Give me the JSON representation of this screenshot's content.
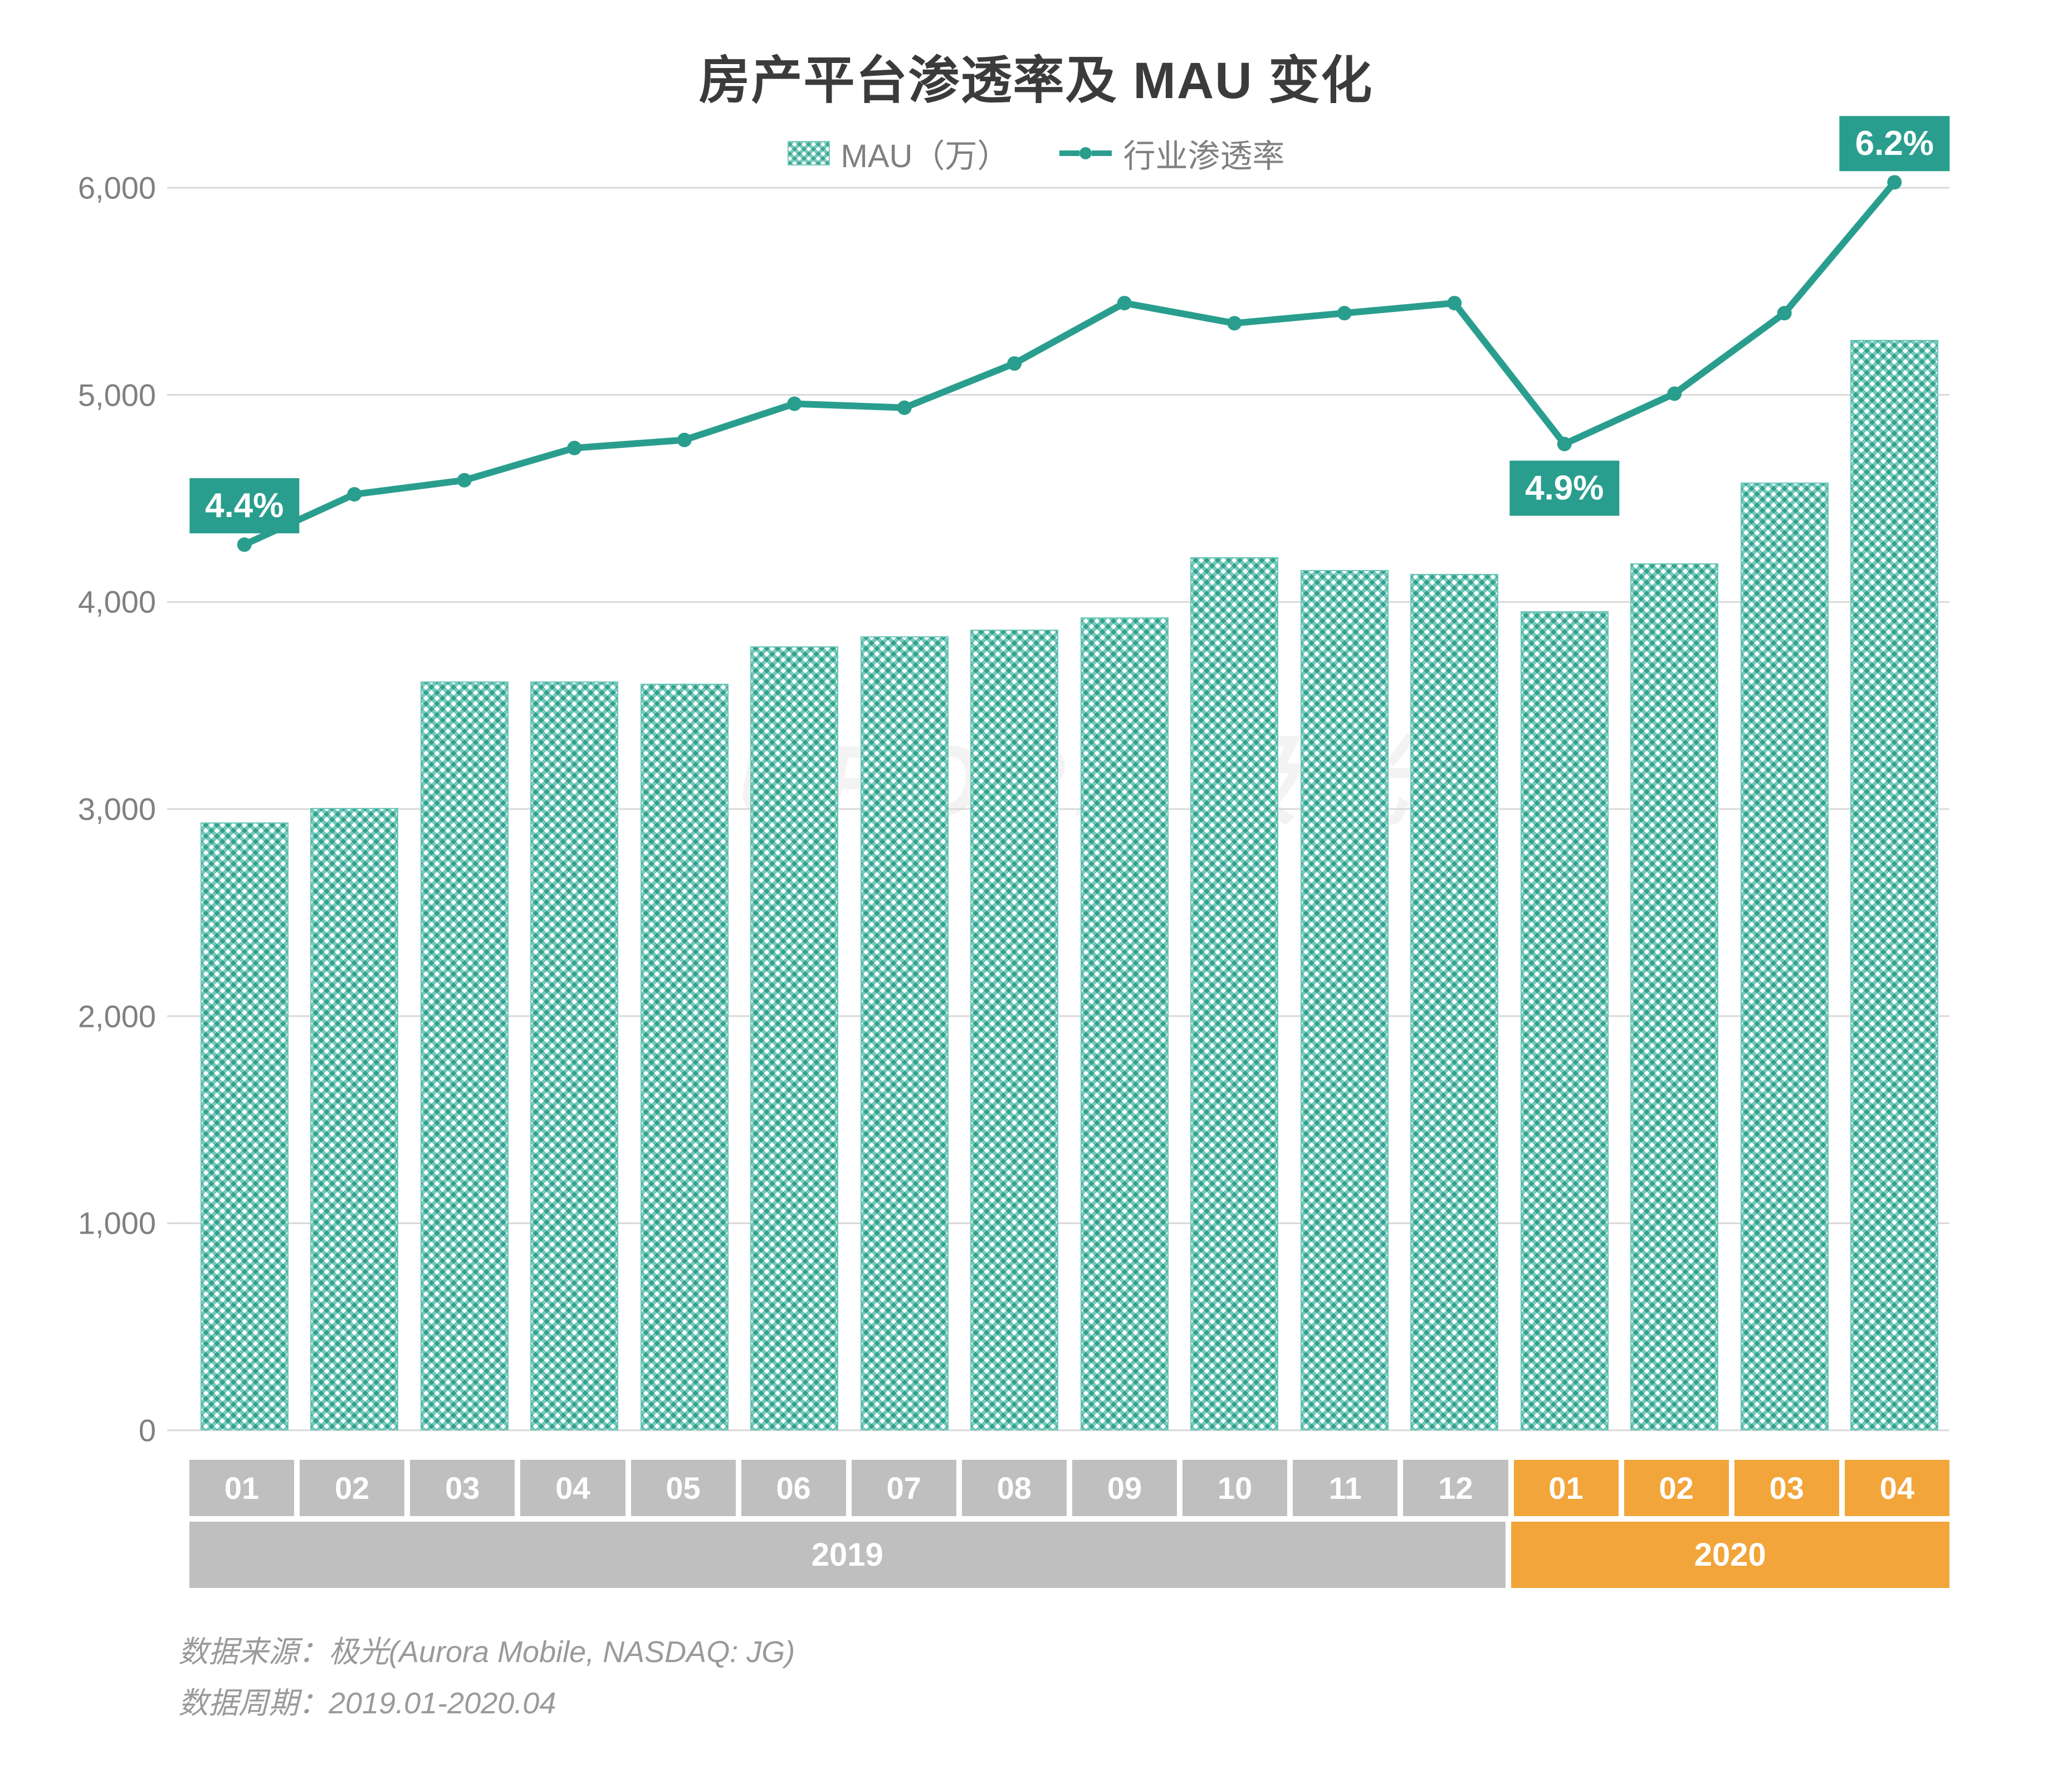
{
  "chart": {
    "type": "bar+line",
    "title": "房产平台渗透率及 MAU 变化",
    "title_fontsize": 92,
    "title_color": "#3b3b3b",
    "background_color": "#ffffff",
    "grid_color": "#d9d9d9",
    "watermark_text": "AURORA 极光",
    "legend": {
      "bar_label": "MAU（万）",
      "line_label": "行业渗透率",
      "font_color": "#808080",
      "font_size": 58
    },
    "y_axis": {
      "min": 0,
      "max": 6000,
      "tick_step": 1000,
      "ticks": [
        "0",
        "1,000",
        "2,000",
        "3,000",
        "4,000",
        "5,000",
        "6,000"
      ],
      "label_color": "#808080",
      "label_fontsize": 56
    },
    "x_axis": {
      "months": [
        "01",
        "02",
        "03",
        "04",
        "05",
        "06",
        "07",
        "08",
        "09",
        "10",
        "11",
        "12",
        "01",
        "02",
        "03",
        "04"
      ],
      "year_groups": [
        {
          "label": "2019",
          "span": 12,
          "color": "#bfbfbf"
        },
        {
          "label": "2020",
          "span": 4,
          "color": "#f2a53a"
        }
      ],
      "month_box_color_2019": "#bfbfbf",
      "month_box_color_2020": "#f2a53a",
      "text_color": "#ffffff",
      "font_size": 56
    },
    "series": {
      "mau": {
        "type": "bar",
        "unit": "万",
        "color": "#6cc6b8",
        "pattern": "crosshatch",
        "bar_width_ratio": 0.78,
        "values": [
          2930,
          3000,
          3610,
          3610,
          3600,
          3780,
          3830,
          3860,
          3920,
          4210,
          4150,
          4130,
          3950,
          4180,
          4570,
          5260
        ]
      },
      "penetration": {
        "type": "line",
        "unit": "%",
        "color": "#2a9e8e",
        "line_width": 12,
        "marker": "circle",
        "marker_size": 26,
        "values": [
          4.4,
          4.65,
          4.72,
          4.88,
          4.92,
          5.1,
          5.08,
          5.3,
          5.6,
          5.5,
          5.55,
          5.6,
          4.9,
          5.15,
          5.55,
          6.2
        ],
        "value_scale_to_y": 972,
        "callouts": [
          {
            "index": 0,
            "text": "4.4%"
          },
          {
            "index": 12,
            "text": "4.9%"
          },
          {
            "index": 15,
            "text": "6.2%"
          }
        ],
        "callout_bg": "#2a9e8e",
        "callout_text_color": "#ffffff",
        "callout_fontsize": 62
      }
    },
    "footnotes": {
      "source": "数据来源：极光(Aurora Mobile, NASDAQ: JG)",
      "period": "数据周期：2019.01-2020.04",
      "color": "#9a9a9a",
      "font_size": 54
    }
  }
}
